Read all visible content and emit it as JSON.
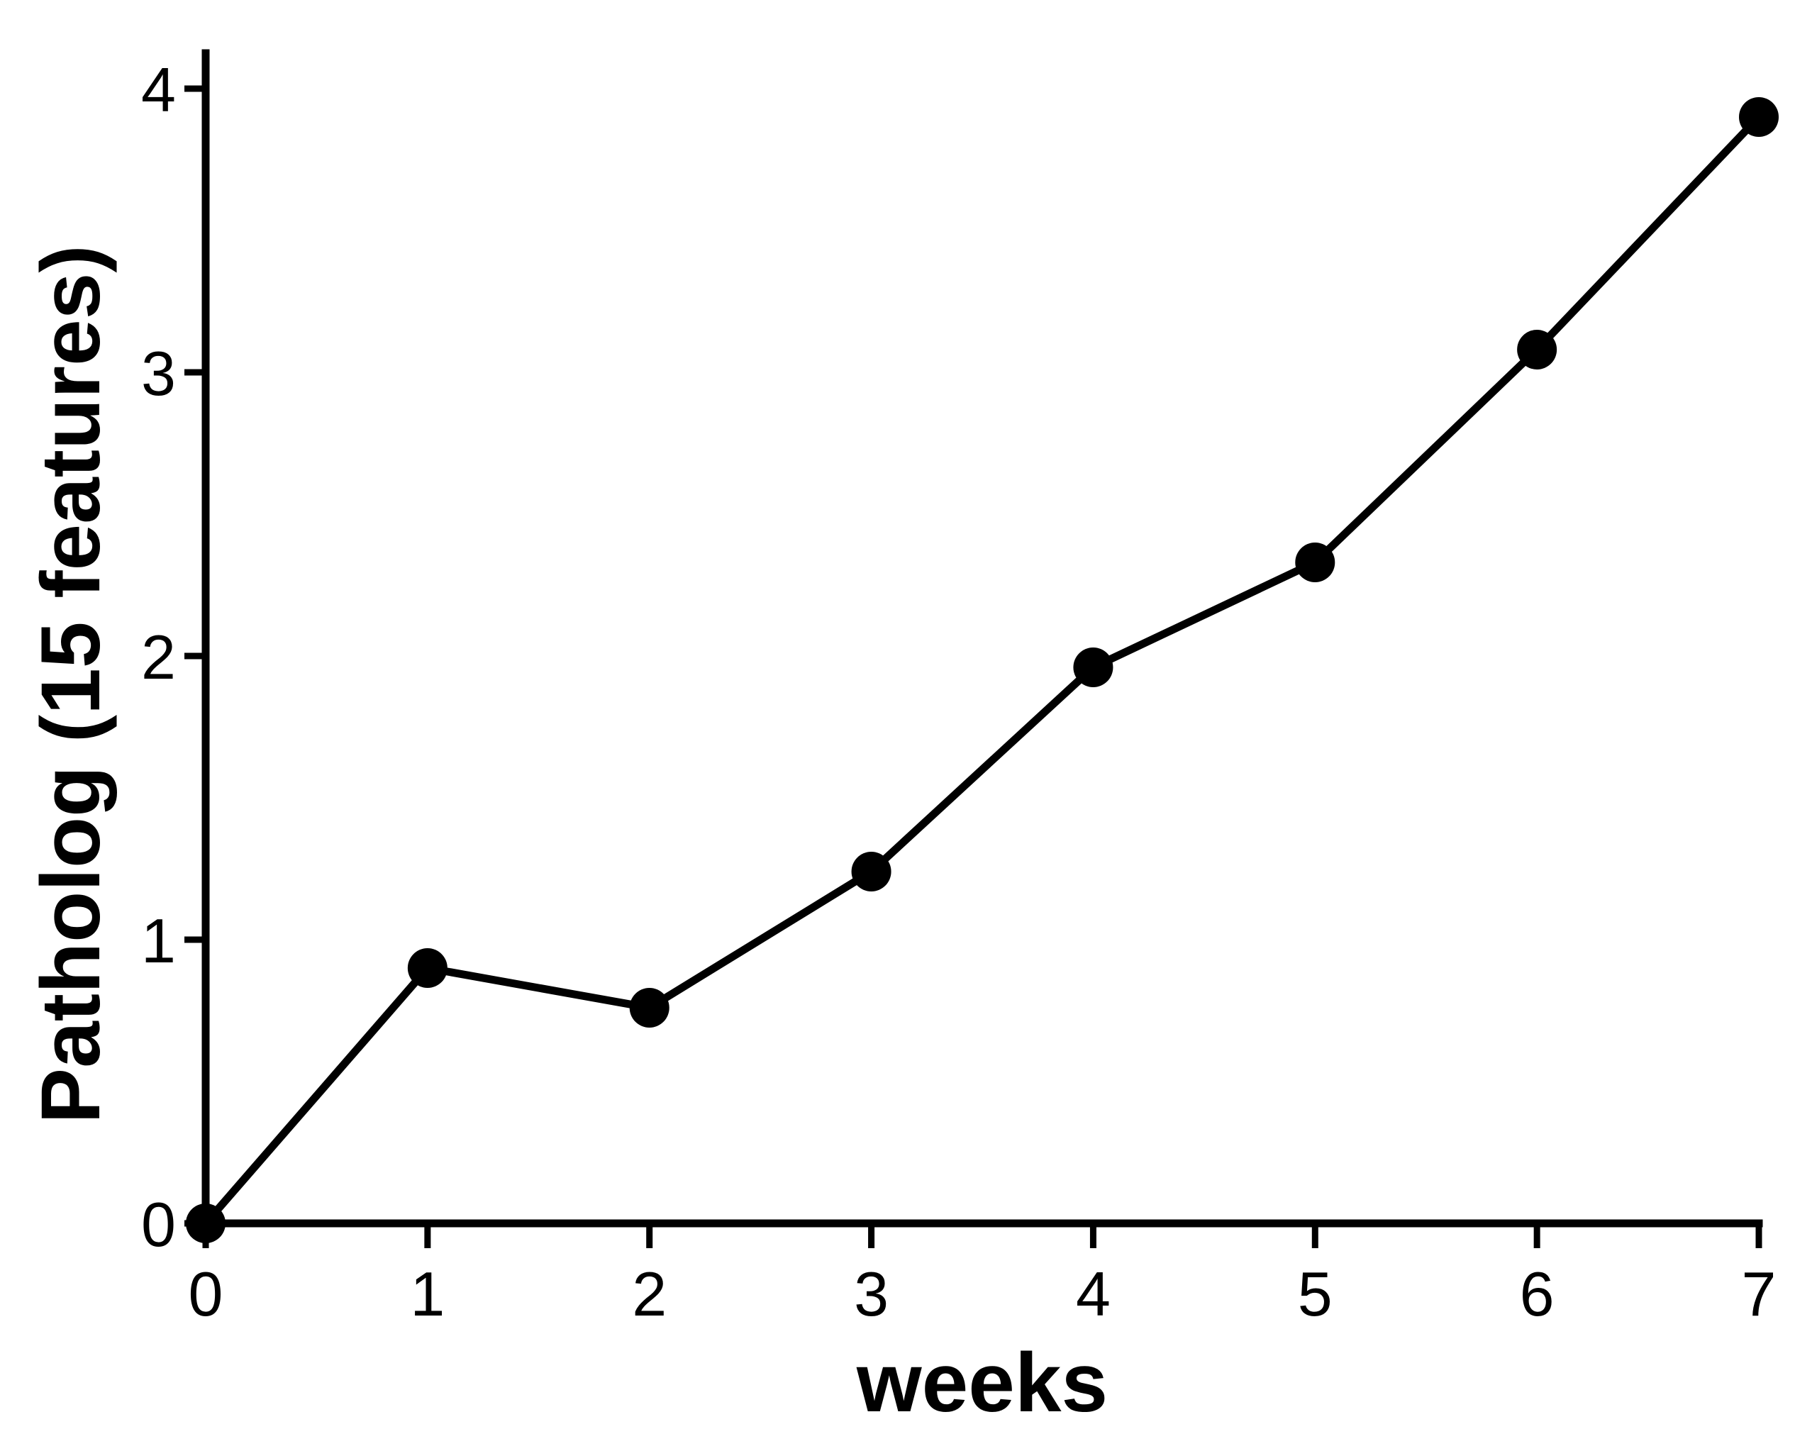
{
  "chart_data": {
    "type": "line",
    "title": "",
    "xlabel": "weeks",
    "ylabel": "Patholog (15 features)",
    "xlim": [
      0,
      7
    ],
    "ylim": [
      0,
      4
    ],
    "x_ticks": [
      0,
      1,
      2,
      3,
      4,
      5,
      6,
      7
    ],
    "y_ticks": [
      0,
      1,
      2,
      3,
      4
    ],
    "grid": false,
    "legend": "none",
    "series": [
      {
        "x": [
          0,
          1,
          2,
          3,
          4,
          5,
          6,
          7
        ],
        "values": [
          0,
          0.9,
          0.76,
          1.24,
          1.96,
          2.33,
          3.08,
          3.9
        ],
        "color": "#000000",
        "marker": "filled-circle"
      }
    ]
  }
}
